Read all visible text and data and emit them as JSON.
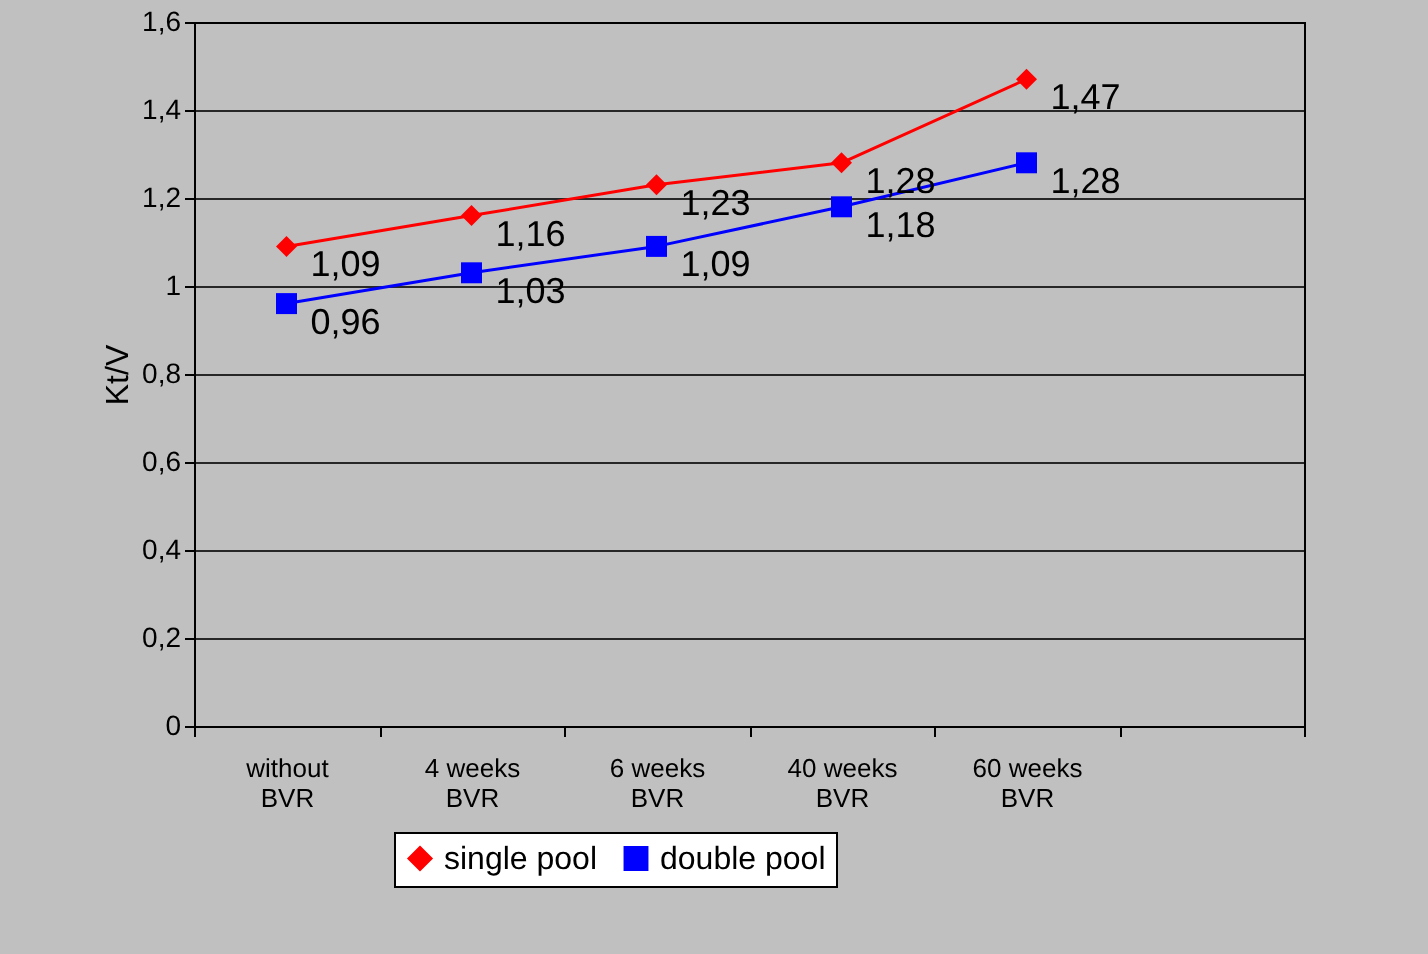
{
  "chart_data": {
    "type": "line",
    "ylabel": "Kt/V",
    "categories": [
      "without\nBVR",
      "4 weeks\nBVR",
      "6 weeks\nBVR",
      "40 weeks\nBVR",
      "60 weeks\nBVR",
      null
    ],
    "series": [
      {
        "name": "single pool",
        "color": "#ff0000",
        "marker": "diamond",
        "values": [
          1.09,
          1.16,
          1.23,
          1.28,
          1.47,
          null
        ],
        "value_labels": [
          "1,09",
          "1,16",
          "1,23",
          "1,28",
          "1,47",
          null
        ]
      },
      {
        "name": "double pool",
        "color": "#0000ff",
        "marker": "square",
        "values": [
          0.96,
          1.03,
          1.09,
          1.18,
          1.28,
          null
        ],
        "value_labels": [
          "0,96",
          "1,03",
          "1,09",
          "1,18",
          "1,28",
          null
        ]
      }
    ],
    "ylim": [
      0,
      1.6
    ],
    "yticks": [
      {
        "value": 0,
        "label": "0"
      },
      {
        "value": 0.2,
        "label": "0,2"
      },
      {
        "value": 0.4,
        "label": "0,4"
      },
      {
        "value": 0.6,
        "label": "0,6"
      },
      {
        "value": 0.8,
        "label": "0,8"
      },
      {
        "value": 1,
        "label": "1"
      },
      {
        "value": 1.2,
        "label": "1,2"
      },
      {
        "value": 1.4,
        "label": "1,4"
      },
      {
        "value": 1.6,
        "label": "1,6"
      }
    ],
    "grid": "y",
    "legend": "bottom"
  }
}
